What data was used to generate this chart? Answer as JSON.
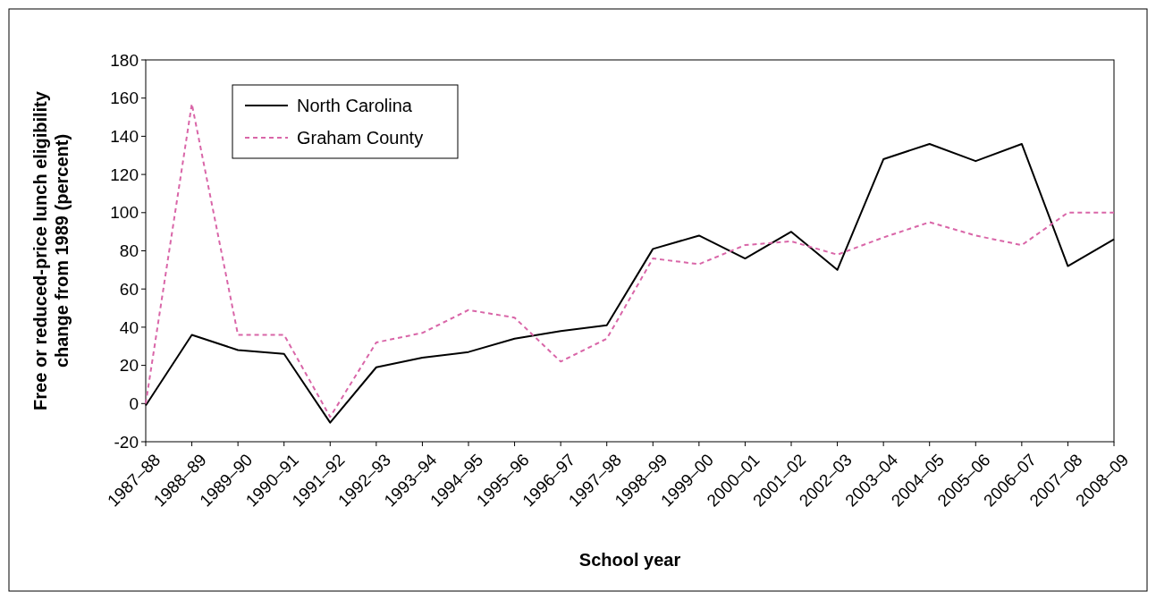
{
  "chart_data": {
    "type": "line",
    "xlabel": "School year",
    "ylabel": "Free or reduced-price lunch eligibility\nchange from 1989 (percent)",
    "categories": [
      "1987–88",
      "1988–89",
      "1989–90",
      "1990–91",
      "1991–92",
      "1992–93",
      "1993–94",
      "1994–95",
      "1995–96",
      "1996–97",
      "1997–98",
      "1998–99",
      "1999–00",
      "2000–01",
      "2001–02",
      "2002–03",
      "2003–04",
      "2004–05",
      "2005–06",
      "2006–07",
      "2007–08",
      "2008–09"
    ],
    "series": [
      {
        "name": "North Carolina",
        "color": "#000000",
        "line_style": "solid",
        "values": [
          -1,
          36,
          28,
          26,
          -10,
          19,
          24,
          27,
          34,
          38,
          41,
          81,
          88,
          76,
          90,
          70,
          128,
          136,
          127,
          136,
          72,
          86
        ]
      },
      {
        "name": "Graham County",
        "color": "#d966a8",
        "line_style": "dashed",
        "values": [
          0,
          157,
          36,
          36,
          -7,
          32,
          37,
          49,
          45,
          22,
          34,
          76,
          73,
          83,
          85,
          78,
          87,
          95,
          88,
          83,
          100,
          100
        ]
      }
    ],
    "ylim": [
      -20,
      180
    ],
    "yticks": [
      -20,
      0,
      20,
      40,
      60,
      80,
      100,
      120,
      140,
      160,
      180
    ],
    "grid": false,
    "legend": "top left"
  }
}
